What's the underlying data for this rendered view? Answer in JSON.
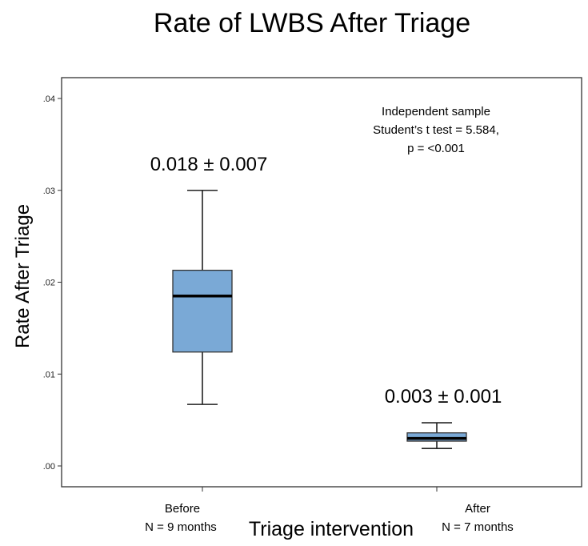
{
  "chart_data": {
    "type": "boxplot",
    "title": "Rate of LWBS After Triage",
    "xlabel": "Triage intervention",
    "ylabel": "Rate After Triage",
    "ylim": [
      -0.0025,
      0.0415
    ],
    "yticks": [
      0.0,
      0.01,
      0.02,
      0.03,
      0.04
    ],
    "ytick_labels": [
      ".00",
      ".01",
      ".02",
      ".03",
      ".04"
    ],
    "box_color": "#7aa9d6",
    "categories": [
      {
        "name": "Before",
        "n_label": "N = 9 months",
        "summary_label": "0.018 ± 0.007",
        "whisker_low": 0.0067,
        "q1": 0.0124,
        "median": 0.0185,
        "q3": 0.0213,
        "whisker_high": 0.03
      },
      {
        "name": "After",
        "n_label": "N = 7 months",
        "summary_label": "0.003 ± 0.001",
        "whisker_low": 0.0019,
        "q1": 0.0027,
        "median": 0.003,
        "q3": 0.0036,
        "whisker_high": 0.0047
      }
    ],
    "annotation": [
      "Independent sample",
      "Student’s t test = 5.584,",
      "p = <0.001"
    ]
  }
}
